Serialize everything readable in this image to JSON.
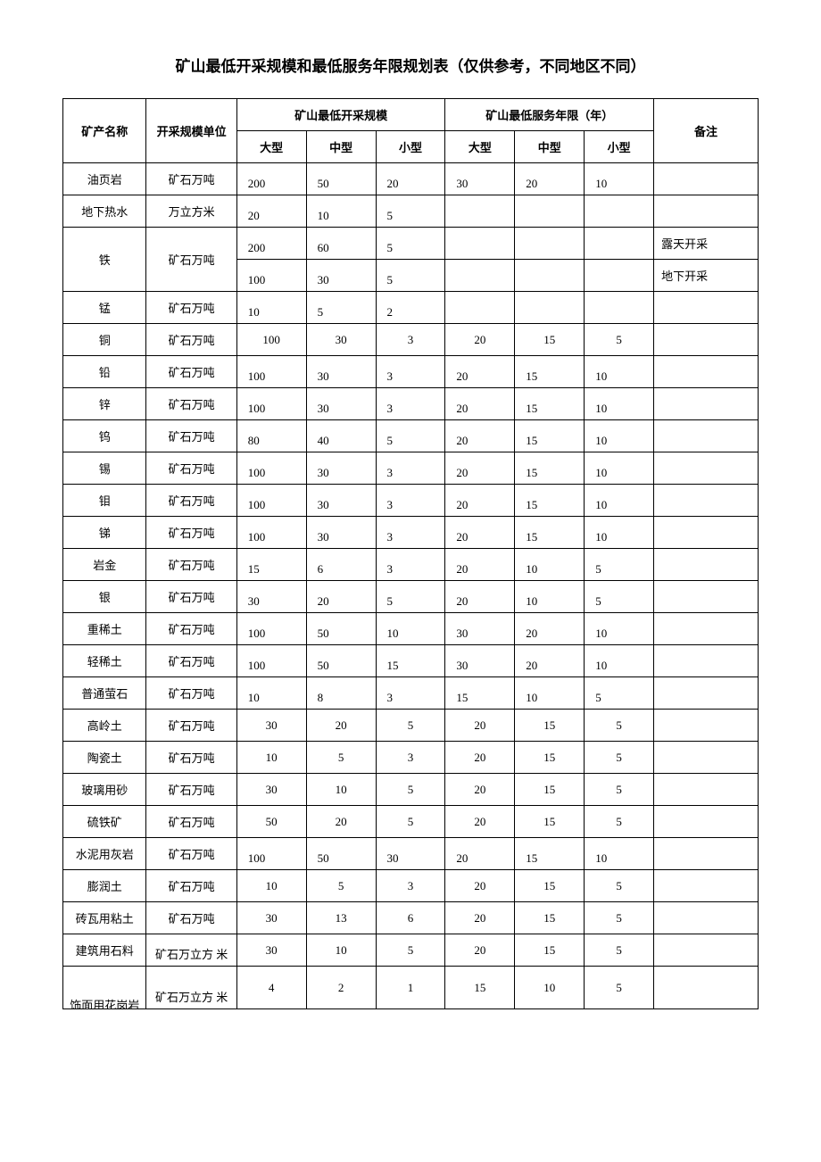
{
  "title": "矿山最低开采规模和最低服务年限规划表（仅供参考，不同地区不同）",
  "header": {
    "name": "矿产名称",
    "unit": "开采规模单位",
    "scale_group": "矿山最低开采规模",
    "year_group": "矿山最低服务年限（年）",
    "note": "备注",
    "large": "大型",
    "medium": "中型",
    "small": "小型"
  },
  "rows": [
    {
      "name": "油页岩",
      "unit": "矿石万吨",
      "s": [
        "200",
        "50",
        "20"
      ],
      "y": [
        "30",
        "20",
        "10"
      ],
      "note": ""
    },
    {
      "name": "地下热水",
      "unit": "万立方米",
      "s": [
        "20",
        "10",
        "5"
      ],
      "y": [
        "",
        "",
        ""
      ],
      "note": ""
    },
    {
      "name": "铁",
      "unit": "矿石万吨",
      "rowspan": 2,
      "s": [
        "200",
        "60",
        "5"
      ],
      "y": [
        "",
        "",
        ""
      ],
      "note": "露天开采"
    },
    {
      "cont": true,
      "s": [
        "100",
        "30",
        "5"
      ],
      "y": [
        "",
        "",
        ""
      ],
      "note": "地下开采"
    },
    {
      "name": "锰",
      "unit": "矿石万吨",
      "s": [
        "10",
        "5",
        "2"
      ],
      "y": [
        "",
        "",
        ""
      ],
      "note": ""
    },
    {
      "name": "铜",
      "unit": "矿石万吨",
      "s": [
        "100",
        "30",
        "3"
      ],
      "y": [
        "20",
        "15",
        "5"
      ],
      "note": "",
      "center": true
    },
    {
      "name": "铅",
      "unit": "矿石万吨",
      "s": [
        "100",
        "30",
        "3"
      ],
      "y": [
        "20",
        "15",
        "10"
      ],
      "note": ""
    },
    {
      "name": "锌",
      "unit": "矿石万吨",
      "s": [
        "100",
        "30",
        "3"
      ],
      "y": [
        "20",
        "15",
        "10"
      ],
      "note": ""
    },
    {
      "name": "钨",
      "unit": "矿石万吨",
      "s": [
        "80",
        "40",
        "5"
      ],
      "y": [
        "20",
        "15",
        "10"
      ],
      "note": ""
    },
    {
      "name": "锡",
      "unit": "矿石万吨",
      "s": [
        "100",
        "30",
        "3"
      ],
      "y": [
        "20",
        "15",
        "10"
      ],
      "note": ""
    },
    {
      "name": "钼",
      "unit": "矿石万吨",
      "s": [
        "100",
        "30",
        "3"
      ],
      "y": [
        "20",
        "15",
        "10"
      ],
      "note": ""
    },
    {
      "name": "锑",
      "unit": "矿石万吨",
      "s": [
        "100",
        "30",
        "3"
      ],
      "y": [
        "20",
        "15",
        "10"
      ],
      "note": ""
    },
    {
      "name": "岩金",
      "unit": "矿石万吨",
      "s": [
        "15",
        "6",
        "3"
      ],
      "y": [
        "20",
        "10",
        "5"
      ],
      "note": ""
    },
    {
      "name": "银",
      "unit": "矿石万吨",
      "s": [
        "30",
        "20",
        "5"
      ],
      "y": [
        "20",
        "10",
        "5"
      ],
      "note": ""
    },
    {
      "name": "重稀土",
      "unit": "矿石万吨",
      "s": [
        "100",
        "50",
        "10"
      ],
      "y": [
        "30",
        "20",
        "10"
      ],
      "note": ""
    },
    {
      "name": "轻稀土",
      "unit": "矿石万吨",
      "s": [
        "100",
        "50",
        "15"
      ],
      "y": [
        "30",
        "20",
        "10"
      ],
      "note": ""
    },
    {
      "name": "普通萤石",
      "unit": "矿石万吨",
      "s": [
        "10",
        "8",
        "3"
      ],
      "y": [
        "15",
        "10",
        "5"
      ],
      "note": ""
    },
    {
      "name": "高岭土",
      "unit": "矿石万吨",
      "s": [
        "30",
        "20",
        "5"
      ],
      "y": [
        "20",
        "15",
        "5"
      ],
      "note": "",
      "center": true
    },
    {
      "name": "陶瓷土",
      "unit": "矿石万吨",
      "s": [
        "10",
        "5",
        "3"
      ],
      "y": [
        "20",
        "15",
        "5"
      ],
      "note": "",
      "center": true
    },
    {
      "name": "玻璃用砂",
      "unit": "矿石万吨",
      "s": [
        "30",
        "10",
        "5"
      ],
      "y": [
        "20",
        "15",
        "5"
      ],
      "note": "",
      "center": true
    },
    {
      "name": "硫铁矿",
      "unit": "矿石万吨",
      "s": [
        "50",
        "20",
        "5"
      ],
      "y": [
        "20",
        "15",
        "5"
      ],
      "note": "",
      "center": true
    },
    {
      "name": "水泥用灰岩",
      "unit": "矿石万吨",
      "s": [
        "100",
        "50",
        "30"
      ],
      "y": [
        "20",
        "15",
        "10"
      ],
      "note": ""
    },
    {
      "name": "膨润土",
      "unit": "矿石万吨",
      "s": [
        "10",
        "5",
        "3"
      ],
      "y": [
        "20",
        "15",
        "5"
      ],
      "note": "",
      "center": true
    },
    {
      "name": "砖瓦用粘土",
      "unit": "矿石万吨",
      "s": [
        "30",
        "13",
        "6"
      ],
      "y": [
        "20",
        "15",
        "5"
      ],
      "note": "",
      "center": true
    },
    {
      "name": "建筑用石料",
      "unit": "矿石万立方 米",
      "s": [
        "30",
        "10",
        "5"
      ],
      "y": [
        "20",
        "15",
        "5"
      ],
      "note": "",
      "center": true,
      "unit_bottom": true
    },
    {
      "name": "饰面用花岗岩",
      "unit": "矿石万立方 米",
      "s": [
        "4",
        "2",
        "1"
      ],
      "y": [
        "15",
        "10",
        "5"
      ],
      "note": "",
      "center": true,
      "last": true
    }
  ]
}
